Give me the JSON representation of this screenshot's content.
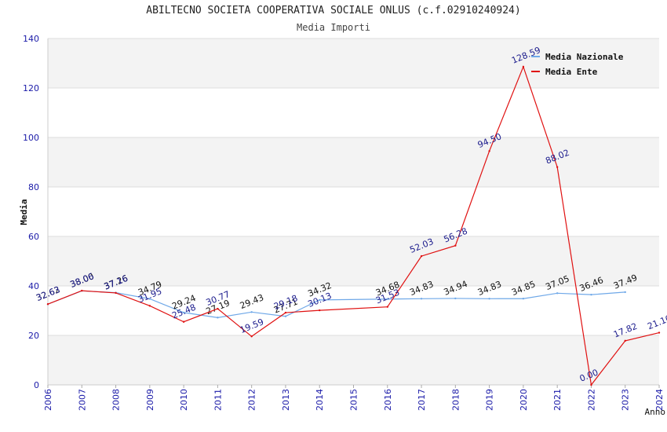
{
  "chart_data": {
    "type": "line",
    "title": "ABILTECNO SOCIETA COOPERATIVA SOCIALE ONLUS (c.f.02910240924)",
    "subtitle": "Media Importi",
    "xlabel": "Anno",
    "ylabel": "Media",
    "ylim": [
      0,
      140
    ],
    "yticks": [
      0,
      20,
      40,
      60,
      80,
      100,
      120,
      140
    ],
    "x": [
      2006,
      2007,
      2008,
      2009,
      2010,
      2011,
      2012,
      2013,
      2014,
      2015,
      2016,
      2017,
      2018,
      2019,
      2020,
      2021,
      2022,
      2023,
      2024
    ],
    "legend_position": "top-right",
    "series": [
      {
        "name": "Media Nazionale",
        "color": "#6fa8e8",
        "label_color": "#111111",
        "x": [
          2006,
          2007,
          2008,
          2009,
          2010,
          2011,
          2012,
          2013,
          2014,
          2016,
          2017,
          2018,
          2019,
          2020,
          2021,
          2022,
          2023
        ],
        "values": [
          32.62,
          38.0,
          37.26,
          34.79,
          29.24,
          27.19,
          29.43,
          27.71,
          34.32,
          34.68,
          34.83,
          34.94,
          34.83,
          34.85,
          37.05,
          36.46,
          37.49
        ],
        "labels": [
          "32.62",
          "38.00",
          "37.26",
          "34.79",
          "29.24",
          "27.19",
          "29.43",
          "27.71",
          "34.32",
          "34.68",
          "34.83",
          "34.94",
          "34.83",
          "34.85",
          "37.05",
          "36.46",
          "37.49"
        ]
      },
      {
        "name": "Media Ente",
        "color": "#e01010",
        "label_color": "#1a1a8c",
        "x": [
          2006,
          2007,
          2008,
          2009,
          2010,
          2011,
          2012,
          2013,
          2014,
          2016,
          2017,
          2018,
          2019,
          2020,
          2021,
          2022,
          2023,
          2024
        ],
        "values": [
          32.63,
          38.06,
          37.16,
          31.95,
          25.48,
          30.77,
          19.59,
          29.18,
          30.13,
          31.53,
          52.03,
          56.28,
          94.5,
          128.59,
          88.02,
          0.0,
          17.82,
          21.1
        ],
        "labels": [
          "32.63",
          "38.06",
          "37.16",
          "31.95",
          "25.48",
          "30.77",
          "19.59",
          "29.18",
          "30.13",
          "31.53",
          "52.03",
          "56.28",
          "94.50",
          "128.59",
          "88.02",
          "0.00",
          "17.82",
          "21.10"
        ]
      }
    ]
  }
}
